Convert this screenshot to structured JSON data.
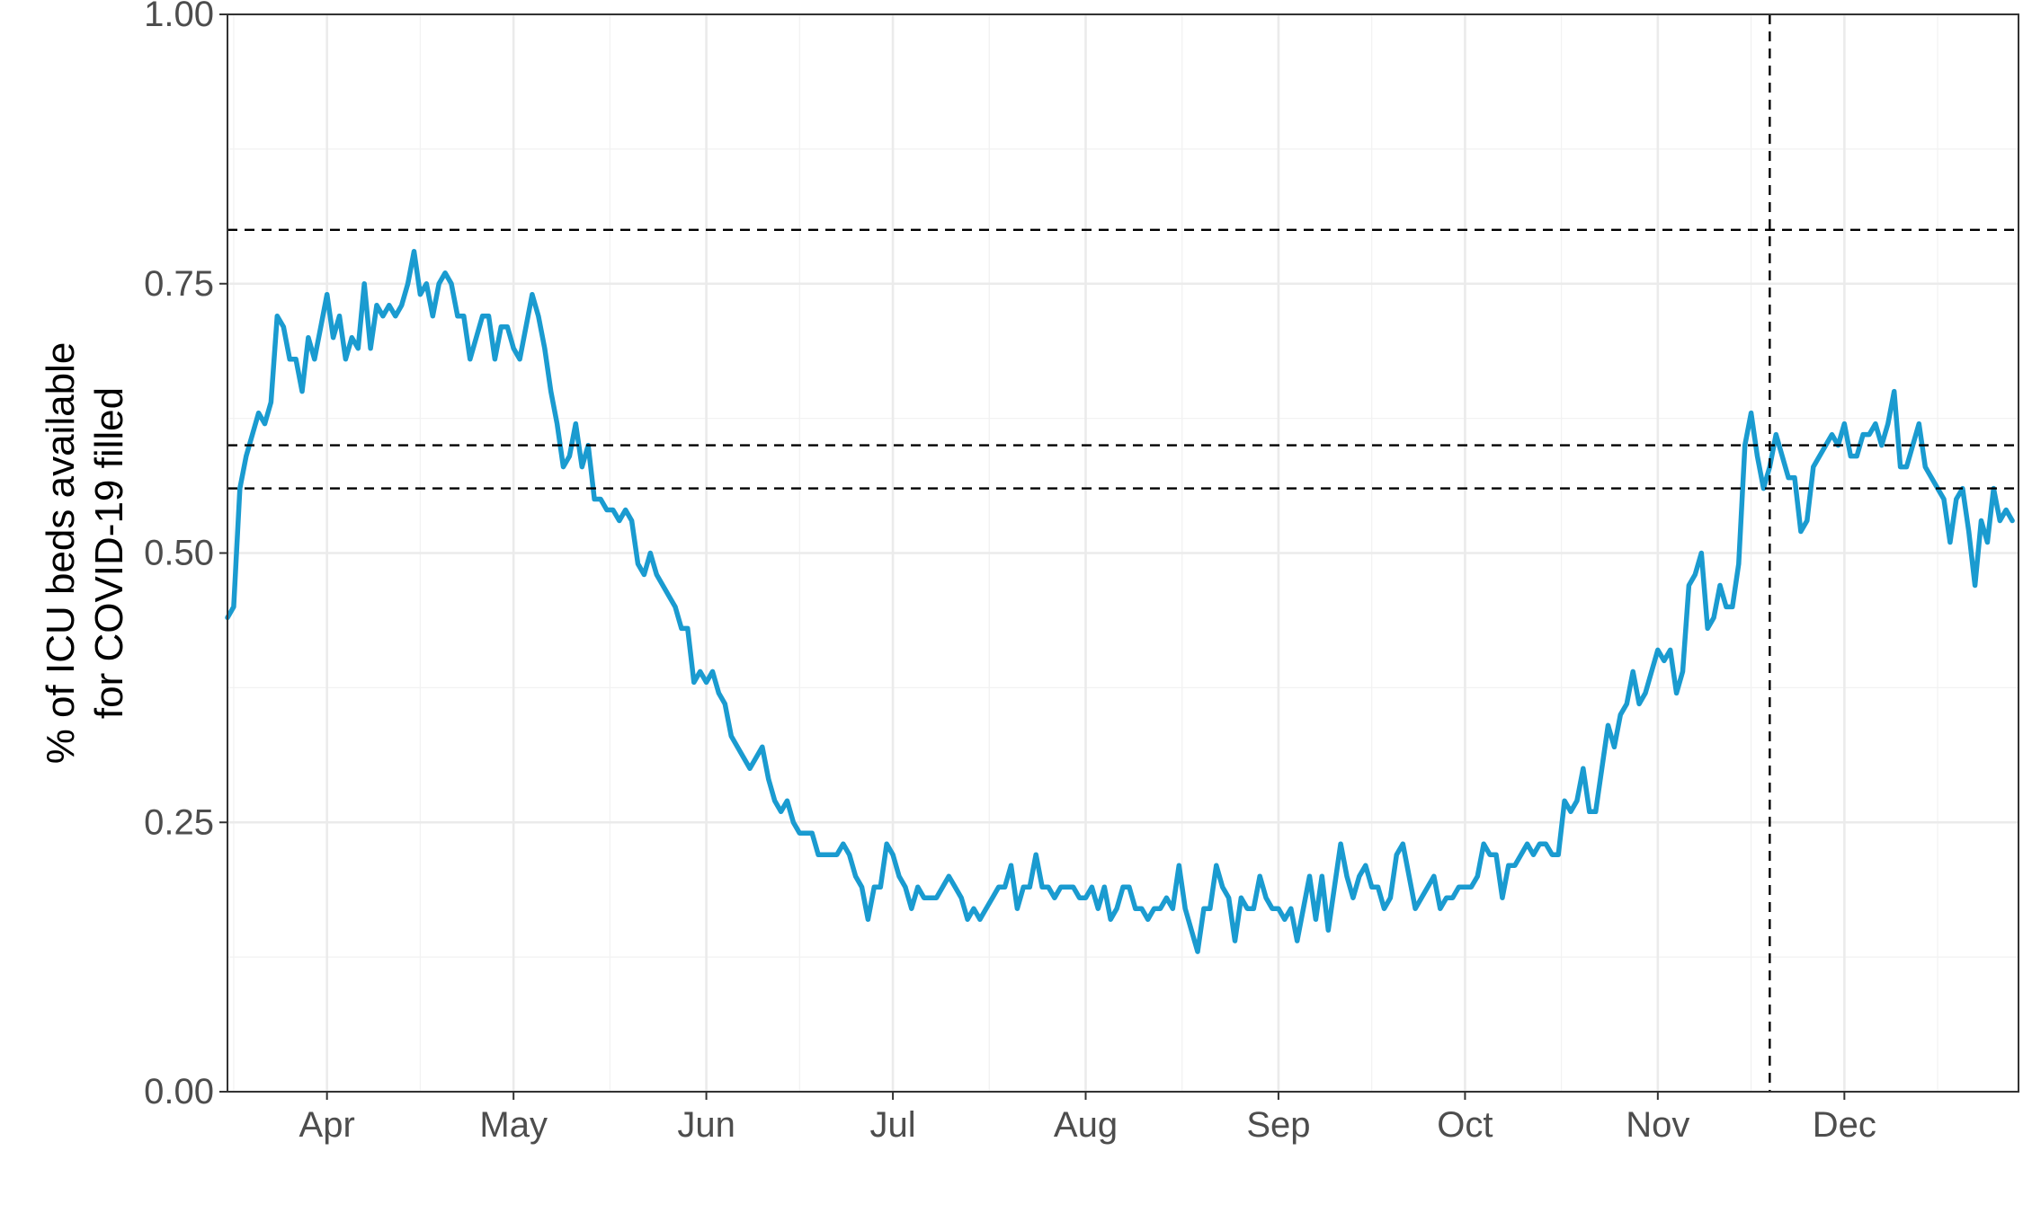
{
  "chart_data": {
    "type": "line",
    "title": "",
    "xlabel": "",
    "ylabel_lines": [
      "% of ICU beds available",
      "for COVID-19 filled"
    ],
    "ylim": [
      0,
      1
    ],
    "xlim": [
      "2020-03-16",
      "2020-12-29"
    ],
    "y_ticks": [
      {
        "value": 0,
        "label": "0.00"
      },
      {
        "value": 0.25,
        "label": "0.25"
      },
      {
        "value": 0.5,
        "label": "0.50"
      },
      {
        "value": 0.75,
        "label": "0.75"
      },
      {
        "value": 1,
        "label": "1.00"
      }
    ],
    "x_ticks": [
      {
        "date": "2020-04-01",
        "label": "Apr"
      },
      {
        "date": "2020-05-01",
        "label": "May"
      },
      {
        "date": "2020-06-01",
        "label": "Jun"
      },
      {
        "date": "2020-07-01",
        "label": "Jul"
      },
      {
        "date": "2020-08-01",
        "label": "Aug"
      },
      {
        "date": "2020-09-01",
        "label": "Sep"
      },
      {
        "date": "2020-10-01",
        "label": "Oct"
      },
      {
        "date": "2020-11-01",
        "label": "Nov"
      },
      {
        "date": "2020-12-01",
        "label": "Dec"
      }
    ],
    "grid": true,
    "line_color": "#1a9bd0",
    "reference_lines": {
      "horizontal": [
        0.8,
        0.6,
        0.56
      ],
      "vertical": [
        "2020-11-19"
      ],
      "style": "dashed",
      "color": "#000000"
    },
    "series": [
      {
        "start_date": "2020-03-16",
        "values": [
          0.44,
          0.45,
          0.56,
          0.59,
          0.61,
          0.63,
          0.62,
          0.64,
          0.72,
          0.71,
          0.68,
          0.68,
          0.65,
          0.7,
          0.68,
          0.71,
          0.74,
          0.7,
          0.72,
          0.68,
          0.7,
          0.69,
          0.75,
          0.69,
          0.73,
          0.72,
          0.73,
          0.72,
          0.73,
          0.75,
          0.78,
          0.74,
          0.75,
          0.72,
          0.75,
          0.76,
          0.75,
          0.72,
          0.72,
          0.68,
          0.7,
          0.72,
          0.72,
          0.68,
          0.71,
          0.71,
          0.69,
          0.68,
          0.71,
          0.74,
          0.72,
          0.69,
          0.65,
          0.62,
          0.58,
          0.59,
          0.62,
          0.58,
          0.6,
          0.55,
          0.55,
          0.54,
          0.54,
          0.53,
          0.54,
          0.53,
          0.49,
          0.48,
          0.5,
          0.48,
          0.47,
          0.46,
          0.45,
          0.43,
          0.43,
          0.38,
          0.39,
          0.38,
          0.39,
          0.37,
          0.36,
          0.33,
          0.32,
          0.31,
          0.3,
          0.31,
          0.32,
          0.29,
          0.27,
          0.26,
          0.27,
          0.25,
          0.24,
          0.24,
          0.24,
          0.22,
          0.22,
          0.22,
          0.22,
          0.23,
          0.22,
          0.2,
          0.19,
          0.16,
          0.19,
          0.19,
          0.23,
          0.22,
          0.2,
          0.19,
          0.17,
          0.19,
          0.18,
          0.18,
          0.18,
          0.19,
          0.2,
          0.19,
          0.18,
          0.16,
          0.17,
          0.16,
          0.17,
          0.18,
          0.19,
          0.19,
          0.21,
          0.17,
          0.19,
          0.19,
          0.22,
          0.19,
          0.19,
          0.18,
          0.19,
          0.19,
          0.19,
          0.18,
          0.18,
          0.19,
          0.17,
          0.19,
          0.16,
          0.17,
          0.19,
          0.19,
          0.17,
          0.17,
          0.16,
          0.17,
          0.17,
          0.18,
          0.17,
          0.21,
          0.17,
          0.15,
          0.13,
          0.17,
          0.17,
          0.21,
          0.19,
          0.18,
          0.14,
          0.18,
          0.17,
          0.17,
          0.2,
          0.18,
          0.17,
          0.17,
          0.16,
          0.17,
          0.14,
          0.17,
          0.2,
          0.16,
          0.2,
          0.15,
          0.19,
          0.23,
          0.2,
          0.18,
          0.2,
          0.21,
          0.19,
          0.19,
          0.17,
          0.18,
          0.22,
          0.23,
          0.2,
          0.17,
          0.18,
          0.19,
          0.2,
          0.17,
          0.18,
          0.18,
          0.19,
          0.19,
          0.19,
          0.2,
          0.23,
          0.22,
          0.22,
          0.18,
          0.21,
          0.21,
          0.22,
          0.23,
          0.22,
          0.23,
          0.23,
          0.22,
          0.22,
          0.27,
          0.26,
          0.27,
          0.3,
          0.26,
          0.26,
          0.3,
          0.34,
          0.32,
          0.35,
          0.36,
          0.39,
          0.36,
          0.37,
          0.39,
          0.41,
          0.4,
          0.41,
          0.37,
          0.39,
          0.47,
          0.48,
          0.5,
          0.43,
          0.44,
          0.47,
          0.45,
          0.45,
          0.49,
          0.6,
          0.63,
          0.59,
          0.56,
          0.58,
          0.61,
          0.59,
          0.57,
          0.57,
          0.52,
          0.53,
          0.58,
          0.59,
          0.6,
          0.61,
          0.6,
          0.62,
          0.59,
          0.59,
          0.61,
          0.61,
          0.62,
          0.6,
          0.62,
          0.65,
          0.58,
          0.58,
          0.6,
          0.62,
          0.58,
          0.57,
          0.56,
          0.55,
          0.51,
          0.55,
          0.56,
          0.52,
          0.47,
          0.53,
          0.51,
          0.56,
          0.53,
          0.54,
          0.53
        ]
      }
    ]
  }
}
